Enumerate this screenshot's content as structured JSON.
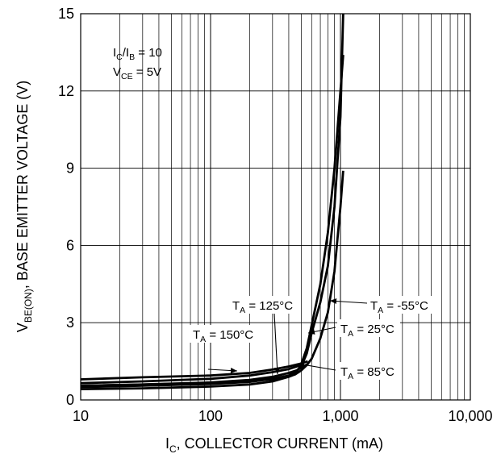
{
  "chart_data": {
    "type": "line",
    "title": "",
    "xlabel": {
      "main": "I",
      "sub": "C",
      "rest": ", COLLECTOR CURRENT (mA)"
    },
    "ylabel": {
      "main": "V",
      "sub": "BE(ON)",
      "rest": ", BASE EMITTER VOLTAGE (V)"
    },
    "x_scale": "log",
    "xlim": [
      10,
      10000
    ],
    "ylim": [
      0,
      15
    ],
    "grid": true,
    "x_tick_values": [
      10,
      100,
      1000,
      10000
    ],
    "x_tick_labels": [
      "10",
      "100",
      "1,000",
      "10,000"
    ],
    "y_tick_values": [
      0,
      3,
      6,
      9,
      12,
      15
    ],
    "y_tick_labels": [
      "0",
      "3",
      "6",
      "9",
      "12",
      "15"
    ],
    "conditions": [
      {
        "main": "I",
        "sub": "C",
        "rest": "/I",
        "sub2": "B",
        "rest2": " = 10"
      },
      {
        "main": "V",
        "sub": "CE",
        "rest": " = 5V"
      }
    ],
    "series": [
      {
        "name": "T = 150°C",
        "label_main": "T",
        "label_sub": "A",
        "label_rest": " = 150°C",
        "x": [
          10,
          30,
          100,
          200,
          300,
          400,
          500,
          560
        ],
        "y": [
          0.8,
          0.88,
          0.95,
          1.05,
          1.18,
          1.3,
          1.42,
          1.5
        ]
      },
      {
        "name": "T = 125°C",
        "label_main": "T",
        "label_sub": "A",
        "label_rest": " = 125°C",
        "x": [
          10,
          30,
          100,
          200,
          300,
          400,
          460,
          520
        ],
        "y": [
          0.65,
          0.72,
          0.82,
          0.95,
          1.08,
          1.2,
          1.3,
          1.45
        ]
      },
      {
        "name": "T = 85°C",
        "label_main": "T",
        "label_sub": "A",
        "label_rest": " = 85°C",
        "x": [
          10,
          30,
          100,
          200,
          300,
          400,
          460,
          520,
          560
        ],
        "y": [
          0.55,
          0.6,
          0.68,
          0.78,
          0.9,
          1.05,
          1.15,
          1.3,
          1.4
        ]
      },
      {
        "name": "T = 25°C",
        "label_main": "T",
        "label_sub": "A",
        "label_rest": " = 25°C",
        "x": [
          10,
          30,
          100,
          200,
          300,
          400,
          450,
          500,
          550,
          600,
          700,
          800,
          900,
          1000,
          1050
        ],
        "y": [
          0.5,
          0.55,
          0.62,
          0.7,
          0.82,
          0.95,
          1.1,
          1.3,
          1.8,
          2.6,
          3.8,
          5.2,
          7.5,
          11.0,
          15.0
        ]
      },
      {
        "name": "T = -55°C",
        "label_main": "T",
        "label_sub": "A",
        "label_rest": " = -55°C",
        "x": [
          10,
          30,
          100,
          200,
          300,
          400,
          450,
          500,
          550,
          600,
          700,
          800,
          900,
          1000,
          1050
        ],
        "y": [
          0.42,
          0.45,
          0.52,
          0.6,
          0.72,
          0.9,
          1.0,
          1.15,
          1.35,
          1.6,
          2.4,
          3.4,
          5.0,
          7.5,
          8.9
        ]
      },
      {
        "name": "",
        "label_main": "",
        "label_sub": "",
        "label_rest": "",
        "x": [
          10,
          100,
          300,
          450,
          500,
          550,
          600,
          700,
          800,
          900,
          1000,
          1050
        ],
        "y": [
          0.55,
          0.65,
          0.8,
          1.0,
          1.4,
          2.0,
          2.9,
          4.5,
          6.5,
          9.0,
          12.0,
          13.4
        ]
      }
    ],
    "annotation_labels": [
      {
        "main": "T",
        "sub": "A",
        "rest": " = 125°C"
      },
      {
        "main": "T",
        "sub": "A",
        "rest": " = 150°C"
      },
      {
        "main": "T",
        "sub": "A",
        "rest": " = -55°C"
      },
      {
        "main": "T",
        "sub": "A",
        "rest": " = 25°C"
      },
      {
        "main": "T",
        "sub": "A",
        "rest": " = 85°C"
      }
    ]
  }
}
